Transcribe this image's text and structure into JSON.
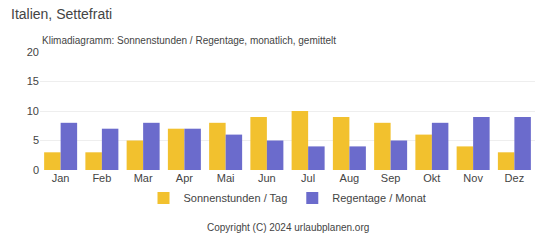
{
  "chart_data": {
    "type": "bar",
    "title": "Italien, Settefrati",
    "subtitle": "Klimadiagramm: Sonnenstunden / Regentage, monatlich, gemittelt",
    "annotations": [
      "Copyright (C) 2024 urlaubplanen.org"
    ],
    "categories": [
      "Jan",
      "Feb",
      "Mar",
      "Apr",
      "Mai",
      "Jun",
      "Jul",
      "Aug",
      "Sep",
      "Okt",
      "Nov",
      "Dez"
    ],
    "series": [
      {
        "name": "Sonnenstunden / Tag",
        "color": "#f2c12e",
        "values": [
          3,
          3,
          5,
          7,
          8,
          9,
          10,
          9,
          8,
          6,
          4,
          3
        ]
      },
      {
        "name": "Regentage / Monat",
        "color": "#6b6bcc",
        "values": [
          8,
          7,
          8,
          7,
          6,
          5,
          4,
          4,
          5,
          8,
          9,
          9
        ]
      }
    ],
    "ylim": [
      0,
      20
    ],
    "yticks": [
      0,
      5,
      10,
      15,
      20
    ],
    "grid": true,
    "legend": "bottom"
  }
}
